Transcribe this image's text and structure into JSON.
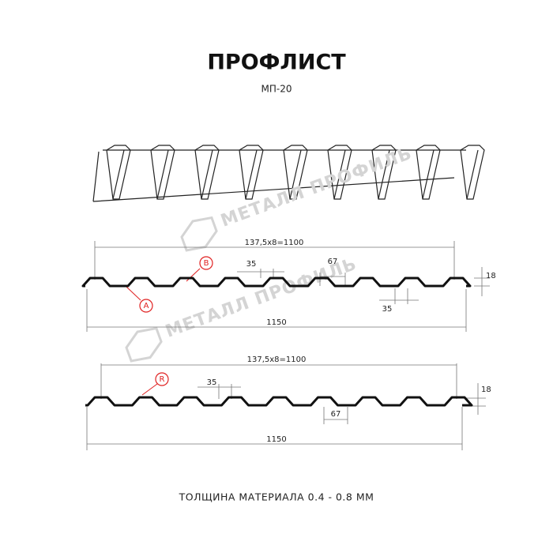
{
  "header": {
    "title": "ПРОФЛИСТ",
    "subtitle": "МП-20"
  },
  "watermarks": [
    "МЕТАЛЛ ПРОФИЛЬ",
    "МЕТАЛЛ ПРОФИЛЬ"
  ],
  "profile_1": {
    "pitch": "137,5x8=1100",
    "top_width": "35",
    "bottom_width": "67",
    "height": "18",
    "rib_width": "35",
    "total_width": "1150",
    "marker_a": "A",
    "marker_b": "B"
  },
  "profile_2": {
    "pitch": "137,5x8=1100",
    "top_width": "35",
    "bottom_width": "67",
    "height": "18",
    "total_width": "1150",
    "marker_r": "R"
  },
  "footer": {
    "thickness": "ТОЛЩИНА МАТЕРИАЛА 0.4 - 0.8 ММ"
  }
}
